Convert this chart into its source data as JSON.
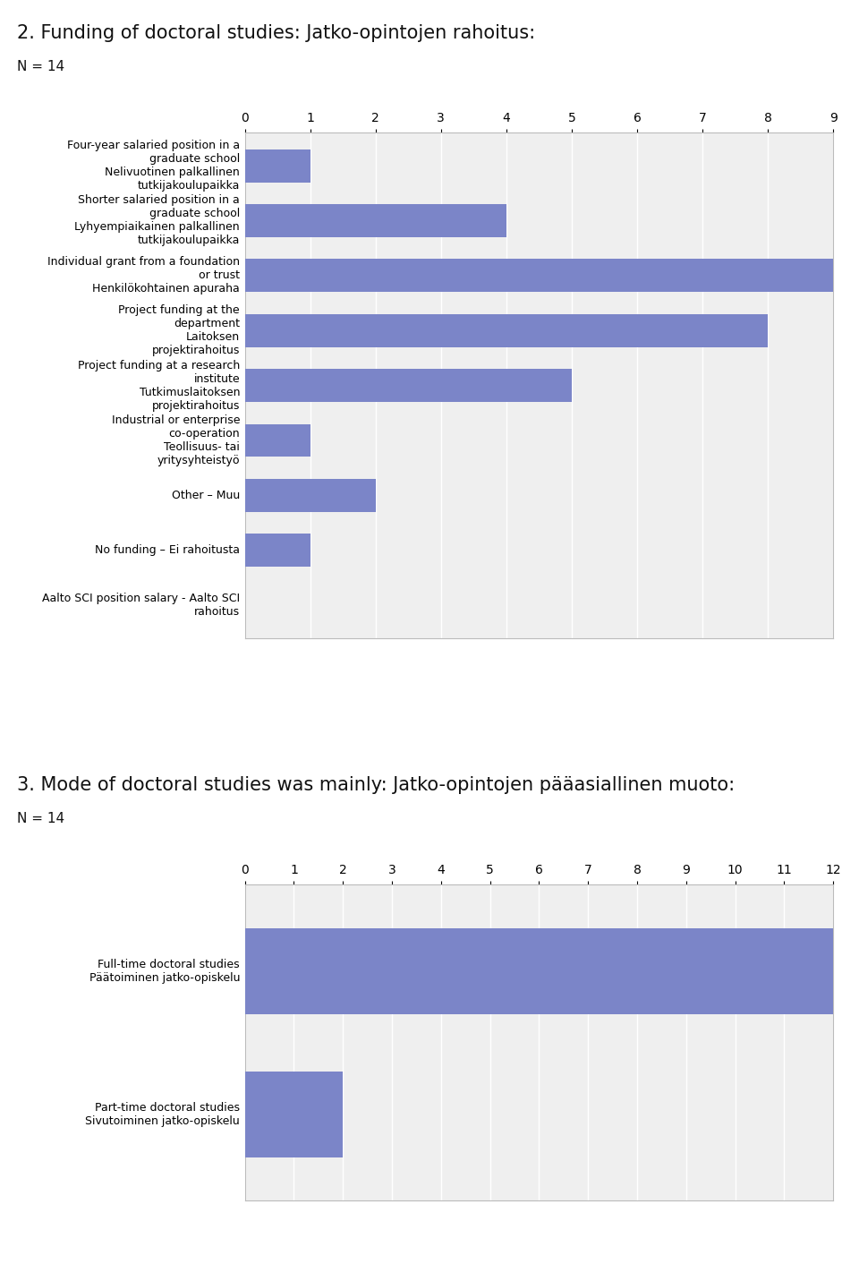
{
  "chart1": {
    "title": "2. Funding of doctoral studies: Jatko-opintojen rahoitus:",
    "n_label": "N = 14",
    "categories": [
      "Four-year salaried position in a\ngraduate school\nNelivuotinen palkallinen\ntutkijakoulupaikka",
      "Shorter salaried position in a\ngraduate school\nLyhyempiaikainen palkallinen\ntutkijakoulupaikka",
      "Individual grant from a foundation\nor trust\nHenkilökohtainen apuraha",
      "Project funding at the\ndepartment\nLaitoksen\nprojektirahoitus",
      "Project funding at a research\ninstitute\nTutkimuslaitoksen\nprojektirahoitus",
      "Industrial or enterprise\nco-operation\nTeollisuus- tai\nyritysyhteistyö",
      "Other – Muu",
      "No funding – Ei rahoitusta",
      "Aalto SCI position salary - Aalto SCI\nrahoitus"
    ],
    "values": [
      1,
      4,
      9,
      8,
      5,
      1,
      2,
      1,
      0
    ],
    "xlim": [
      0,
      9
    ],
    "xticks": [
      0,
      1,
      2,
      3,
      4,
      5,
      6,
      7,
      8,
      9
    ],
    "bar_color": "#7b85c8",
    "plot_bg_color": "#efefef"
  },
  "chart2": {
    "title": "3. Mode of doctoral studies was mainly: Jatko-opintojen pääasiallinen muoto:",
    "n_label": "N = 14",
    "categories": [
      "Full-time doctoral studies\nPäätoiminen jatko-opiskelu",
      "Part-time doctoral studies\nSivutoiminen jatko-opiskelu"
    ],
    "values": [
      12,
      2
    ],
    "xlim": [
      0,
      12
    ],
    "xticks": [
      0,
      1,
      2,
      3,
      4,
      5,
      6,
      7,
      8,
      9,
      10,
      11,
      12
    ],
    "bar_color": "#7b85c8",
    "plot_bg_color": "#efefef"
  },
  "title_fontsize": 15,
  "n_fontsize": 11,
  "tick_fontsize": 10,
  "label_fontsize": 9,
  "bg_color": "#ffffff"
}
